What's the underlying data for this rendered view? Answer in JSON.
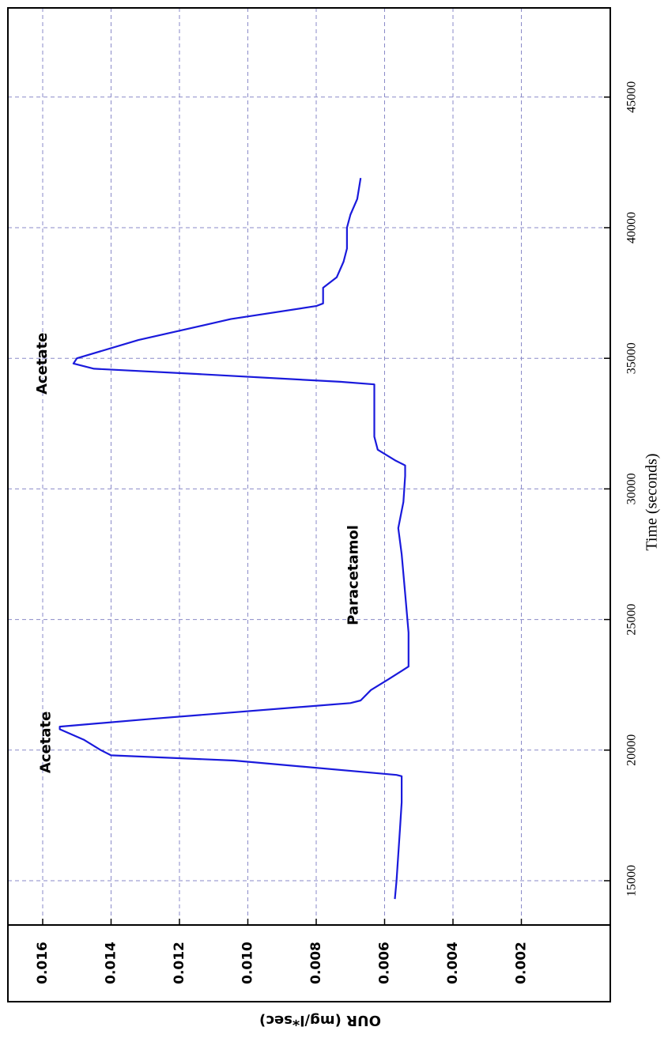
{
  "chart_data": {
    "type": "line",
    "title": "",
    "xlabel": "Time (seconds)",
    "ylabel": "OUR (mg/l*sec)",
    "xlim": [
      13000,
      46000
    ],
    "ylim": [
      0,
      0.017
    ],
    "x_ticks": [
      "15000",
      "20000",
      "25000",
      "30000",
      "35000",
      "40000",
      "45000"
    ],
    "y_ticks": [
      "0.016",
      "0.014",
      "0.012",
      "0.010",
      "0.008",
      "0.006",
      "0.004",
      "0.002"
    ],
    "grid": true,
    "orientation": "rotated-90-clockwise",
    "series": [
      {
        "color": "#1a1adc",
        "points": [
          [
            14300,
            0.0057
          ],
          [
            15000,
            0.00565
          ],
          [
            16000,
            0.0056
          ],
          [
            17000,
            0.00555
          ],
          [
            18000,
            0.0055
          ],
          [
            18800,
            0.0055
          ],
          [
            19000,
            0.0055
          ],
          [
            19050,
            0.00565
          ],
          [
            19600,
            0.0104
          ],
          [
            19800,
            0.014
          ],
          [
            20000,
            0.0143
          ],
          [
            20400,
            0.0148
          ],
          [
            20800,
            0.0155
          ],
          [
            20900,
            0.0155
          ],
          [
            21200,
            0.0128
          ],
          [
            21800,
            0.007
          ],
          [
            21900,
            0.0067
          ],
          [
            22300,
            0.0064
          ],
          [
            22700,
            0.0059
          ],
          [
            23200,
            0.0053
          ],
          [
            24500,
            0.0053
          ],
          [
            26000,
            0.0054
          ],
          [
            27500,
            0.0055
          ],
          [
            28500,
            0.0056
          ],
          [
            29500,
            0.00545
          ],
          [
            30500,
            0.0054
          ],
          [
            30900,
            0.0054
          ],
          [
            31100,
            0.0057
          ],
          [
            31500,
            0.0062
          ],
          [
            32000,
            0.0063
          ],
          [
            33500,
            0.0063
          ],
          [
            34000,
            0.0063
          ],
          [
            34100,
            0.0073
          ],
          [
            34400,
            0.0115
          ],
          [
            34600,
            0.0145
          ],
          [
            34800,
            0.0151
          ],
          [
            35000,
            0.015
          ],
          [
            35700,
            0.0132
          ],
          [
            36500,
            0.0105
          ],
          [
            37000,
            0.008
          ],
          [
            37100,
            0.0078
          ],
          [
            37700,
            0.0078
          ],
          [
            38100,
            0.0074
          ],
          [
            38700,
            0.0072
          ],
          [
            39200,
            0.0071
          ],
          [
            40000,
            0.0071
          ],
          [
            40500,
            0.007
          ],
          [
            41100,
            0.0068
          ],
          [
            41900,
            0.0067
          ]
        ]
      }
    ],
    "annotations": [
      {
        "text": "Acetate",
        "x": 20300,
        "y": 0.0159
      },
      {
        "text": "Acetate",
        "x": 34800,
        "y": 0.016
      },
      {
        "text": "Paracetamol",
        "x": 26700,
        "y": 0.0069
      }
    ]
  }
}
